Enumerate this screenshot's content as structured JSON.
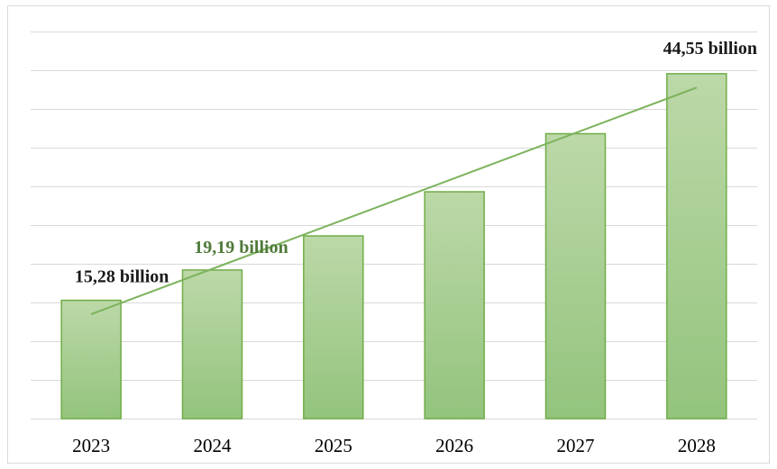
{
  "chart_data": {
    "type": "bar",
    "categories": [
      "2023",
      "2024",
      "2025",
      "2026",
      "2027",
      "2028"
    ],
    "values": [
      15.28,
      19.19,
      23.6,
      29.3,
      36.8,
      44.55
    ],
    "ylim": [
      0,
      50
    ],
    "grid": true,
    "legend": "none",
    "trendline": {
      "type": "linear",
      "color": "#7cb35c"
    },
    "data_labels": [
      {
        "index": 0,
        "text": "15,28 billion",
        "color": "#1a1a1a"
      },
      {
        "index": 1,
        "text": "19,19 billion",
        "color": "#507a3a"
      },
      {
        "index": 5,
        "text": "44,55 billion",
        "color": "#1a1a1a"
      }
    ],
    "colors": {
      "bar_top": "#bcd8a8",
      "bar_bottom": "#93c47d",
      "bar_edge": "#70ad47",
      "grid": "#d9d9d9"
    }
  }
}
